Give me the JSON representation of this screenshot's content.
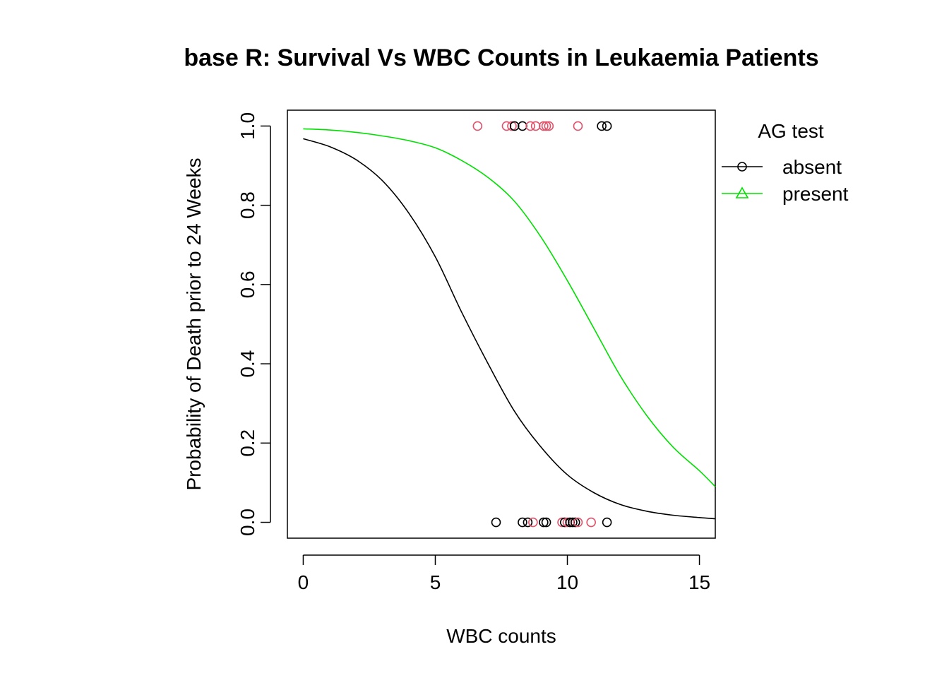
{
  "chart_data": {
    "type": "line",
    "title": "base R: Survival Vs WBC Counts in Leukaemia Patients",
    "xlabel": "WBC counts",
    "ylabel": "Probability of Death prior to 24 Weeks",
    "xlim": [
      -0.6,
      15.6
    ],
    "ylim": [
      -0.04,
      1.04
    ],
    "xticks": [
      0,
      5,
      10,
      15
    ],
    "yticks": [
      0.0,
      0.2,
      0.4,
      0.6,
      0.8,
      1.0
    ],
    "xtick_labels": [
      "0",
      "5",
      "10",
      "15"
    ],
    "ytick_labels": [
      "0.0",
      "0.2",
      "0.4",
      "0.6",
      "0.8",
      "1.0"
    ],
    "grid": false,
    "legend": {
      "title": "AG test",
      "placement": "right-outside",
      "entries": [
        {
          "label": "absent",
          "color": "#000000",
          "marker": "circle"
        },
        {
          "label": "present",
          "color": "#00e000",
          "marker": "triangle"
        }
      ]
    },
    "series": [
      {
        "name": "absent",
        "color": "#000000",
        "x": [
          0,
          1,
          2,
          3,
          4,
          5,
          6,
          7,
          8,
          9,
          10,
          11,
          12,
          13,
          14,
          15,
          15.6
        ],
        "y": [
          0.968,
          0.948,
          0.915,
          0.862,
          0.78,
          0.67,
          0.53,
          0.4,
          0.28,
          0.19,
          0.12,
          0.075,
          0.045,
          0.028,
          0.018,
          0.012,
          0.009
        ]
      },
      {
        "name": "present",
        "color": "#00e000",
        "x": [
          0,
          1,
          2,
          3,
          4,
          5,
          6,
          7,
          8,
          9,
          10,
          11,
          12,
          13,
          14,
          15,
          15.6
        ],
        "y": [
          0.993,
          0.99,
          0.984,
          0.975,
          0.963,
          0.945,
          0.913,
          0.87,
          0.81,
          0.72,
          0.61,
          0.49,
          0.37,
          0.27,
          0.19,
          0.13,
          0.09
        ]
      }
    ],
    "points": [
      {
        "x": 6.6,
        "y": 1,
        "group": "present",
        "color": "#df536b"
      },
      {
        "x": 7.7,
        "y": 1,
        "group": "present",
        "color": "#df536b"
      },
      {
        "x": 7.9,
        "y": 1,
        "group": "present",
        "color": "#df536b"
      },
      {
        "x": 8.0,
        "y": 1,
        "group": "absent",
        "color": "#000000"
      },
      {
        "x": 8.3,
        "y": 1,
        "group": "absent",
        "color": "#000000"
      },
      {
        "x": 8.6,
        "y": 1,
        "group": "present",
        "color": "#df536b"
      },
      {
        "x": 8.8,
        "y": 1,
        "group": "present",
        "color": "#df536b"
      },
      {
        "x": 9.1,
        "y": 1,
        "group": "present",
        "color": "#df536b"
      },
      {
        "x": 9.2,
        "y": 1,
        "group": "present",
        "color": "#df536b"
      },
      {
        "x": 9.3,
        "y": 1,
        "group": "present",
        "color": "#df536b"
      },
      {
        "x": 10.4,
        "y": 1,
        "group": "present",
        "color": "#df536b"
      },
      {
        "x": 11.3,
        "y": 1,
        "group": "absent",
        "color": "#000000"
      },
      {
        "x": 11.5,
        "y": 1,
        "group": "absent",
        "color": "#000000"
      },
      {
        "x": 7.3,
        "y": 0,
        "group": "absent",
        "color": "#000000"
      },
      {
        "x": 8.3,
        "y": 0,
        "group": "absent",
        "color": "#000000"
      },
      {
        "x": 8.5,
        "y": 0,
        "group": "absent",
        "color": "#000000"
      },
      {
        "x": 8.7,
        "y": 0,
        "group": "present",
        "color": "#df536b"
      },
      {
        "x": 9.1,
        "y": 0,
        "group": "absent",
        "color": "#000000"
      },
      {
        "x": 9.2,
        "y": 0,
        "group": "absent",
        "color": "#000000"
      },
      {
        "x": 9.8,
        "y": 0,
        "group": "present",
        "color": "#df536b"
      },
      {
        "x": 9.9,
        "y": 0,
        "group": "absent",
        "color": "#000000"
      },
      {
        "x": 10.0,
        "y": 0,
        "group": "present",
        "color": "#df536b"
      },
      {
        "x": 10.1,
        "y": 0,
        "group": "absent",
        "color": "#000000"
      },
      {
        "x": 10.2,
        "y": 0,
        "group": "absent",
        "color": "#000000"
      },
      {
        "x": 10.3,
        "y": 0,
        "group": "absent",
        "color": "#000000"
      },
      {
        "x": 10.4,
        "y": 0,
        "group": "present",
        "color": "#df536b"
      },
      {
        "x": 10.9,
        "y": 0,
        "group": "present",
        "color": "#df536b"
      },
      {
        "x": 11.5,
        "y": 0,
        "group": "absent",
        "color": "#000000"
      }
    ]
  }
}
